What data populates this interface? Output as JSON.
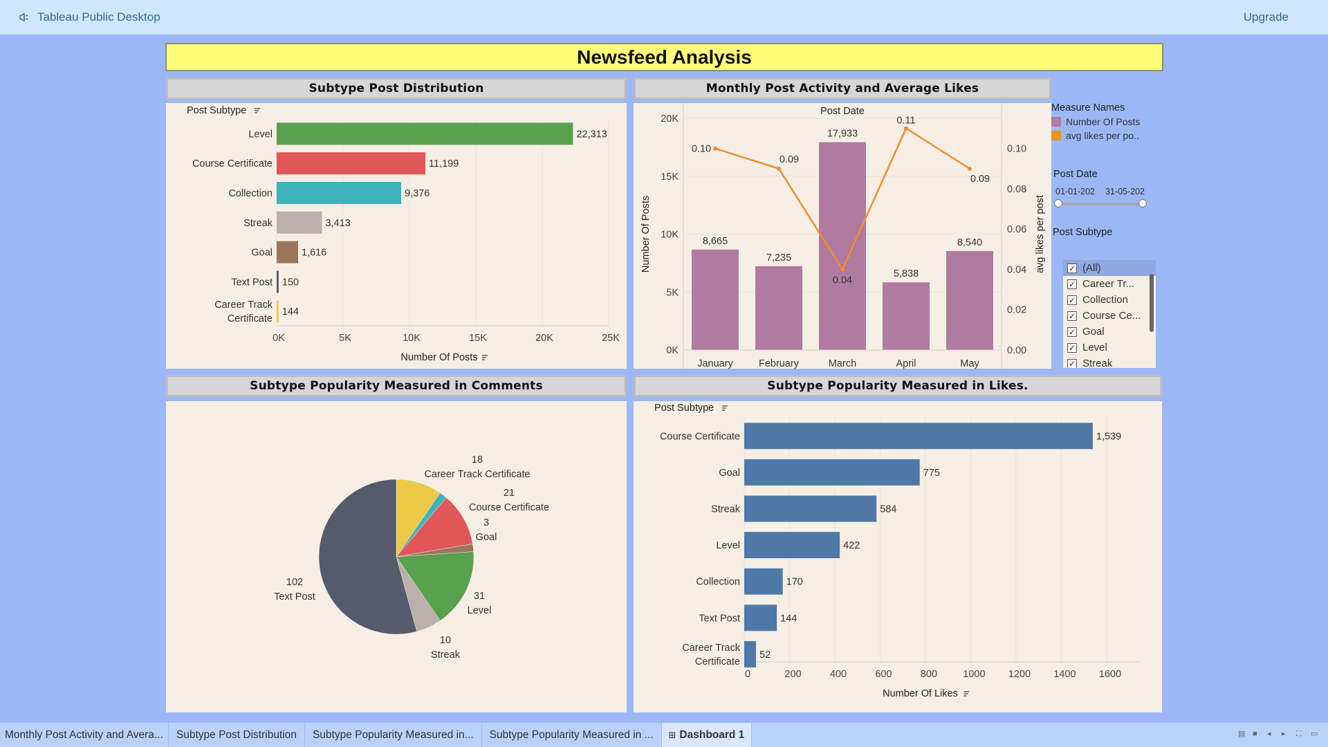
{
  "app": {
    "title": "Tableau Public Desktop",
    "upgrade_label": "Upgrade"
  },
  "dashboard": {
    "title": "Newsfeed Analysis"
  },
  "panels": {
    "subtype_distribution": {
      "title": "Subtype Post Distribution"
    },
    "monthly_activity": {
      "title": "Monthly Post Activity and Average Likes"
    },
    "comments_pie": {
      "title": "Subtype Popularity Measured in Comments"
    },
    "likes_bars": {
      "title": "Subtype Popularity Measured in Likes."
    }
  },
  "chart_data": [
    {
      "id": "subtype_distribution",
      "type": "bar",
      "orientation": "horizontal",
      "row_header": "Post Subtype",
      "xlabel": "Number Of Posts",
      "categories": [
        [
          "Level"
        ],
        [
          "Course Certificate"
        ],
        [
          "Collection"
        ],
        [
          "Streak"
        ],
        [
          "Goal"
        ],
        [
          "Text Post"
        ],
        [
          "Career Track",
          "Certificate"
        ]
      ],
      "values": [
        22313,
        11199,
        9376,
        3413,
        1616,
        150,
        144
      ],
      "value_labels": [
        "22,313",
        "11,199",
        "9,376",
        "3,413",
        "1,616",
        "150",
        "144"
      ],
      "colors": [
        "#59a14f",
        "#e15759",
        "#3fb3bb",
        "#bab0ac",
        "#9c755f",
        "#555b6a",
        "#edc948"
      ],
      "xlim": [
        0,
        25000
      ],
      "x_ticks": [
        0,
        5000,
        10000,
        15000,
        20000,
        25000
      ],
      "x_tick_labels": [
        "0K",
        "5K",
        "10K",
        "15K",
        "20K",
        "25K"
      ]
    },
    {
      "id": "monthly_activity",
      "type": "bar+line",
      "column_header": "Post Date",
      "categories": [
        "January",
        "February",
        "March",
        "April",
        "May"
      ],
      "series": [
        {
          "name": "Number Of Posts",
          "type": "bar",
          "axis": "left",
          "values": [
            8665,
            7235,
            17933,
            5838,
            8540
          ],
          "labels": [
            "8,665",
            "7,235",
            "17,933",
            "5,838",
            "8,540"
          ],
          "color": "#b07aa1"
        },
        {
          "name": "avg likes per po..",
          "type": "line",
          "axis": "right",
          "values": [
            0.1,
            0.09,
            0.04,
            0.11,
            0.09
          ],
          "labels": [
            "0.10",
            "0.09",
            "0.04",
            "0.11",
            "0.09"
          ],
          "color": "#f28e2b"
        }
      ],
      "ylabel": "Number Of Posts",
      "ylim": [
        0,
        20000
      ],
      "y_ticks": [
        0,
        5000,
        10000,
        15000,
        20000
      ],
      "y_tick_labels": [
        "0K",
        "5K",
        "10K",
        "15K",
        "20K"
      ],
      "y2label": "avg likes per post",
      "y2lim": [
        0,
        0.115
      ],
      "y2_ticks": [
        0.0,
        0.02,
        0.04,
        0.06,
        0.08,
        0.1
      ],
      "y2_tick_labels": [
        "0.00",
        "0.02",
        "0.04",
        "0.06",
        "0.08",
        "0.10"
      ]
    },
    {
      "id": "comments_pie",
      "type": "pie",
      "slices": [
        {
          "label": "Career Track Certificate",
          "value": 18,
          "color": "#edc948"
        },
        {
          "label": "Collection",
          "value": 3,
          "color": "#3fb3bb"
        },
        {
          "label": "Course Certificate",
          "value": 21,
          "color": "#e15759"
        },
        {
          "label": "Goal",
          "value": 3,
          "color": "#9c755f"
        },
        {
          "label": "Level",
          "value": 31,
          "color": "#59a14f"
        },
        {
          "label": "Streak",
          "value": 10,
          "color": "#bab0ac"
        },
        {
          "label": "Text Post",
          "value": 102,
          "color": "#555b6a"
        }
      ],
      "labels": [
        {
          "value": "18",
          "name": "Career Track Certificate"
        },
        {
          "value": "21",
          "name": "Course Certificate"
        },
        {
          "value": "3",
          "name": "Goal"
        },
        {
          "value": "31",
          "name": "Level"
        },
        {
          "value": "10",
          "name": "Streak"
        },
        {
          "value": "102",
          "name": "Text Post"
        }
      ]
    },
    {
      "id": "likes_bars",
      "type": "bar",
      "orientation": "horizontal",
      "row_header": "Post Subtype",
      "xlabel": "Number Of Likes",
      "categories": [
        [
          "Course Certificate"
        ],
        [
          "Goal"
        ],
        [
          "Streak"
        ],
        [
          "Level"
        ],
        [
          "Collection"
        ],
        [
          "Text Post"
        ],
        [
          "Career Track",
          "Certificate"
        ]
      ],
      "values": [
        1539,
        775,
        584,
        422,
        170,
        144,
        52
      ],
      "value_labels": [
        "1,539",
        "775",
        "584",
        "422",
        "170",
        "144",
        "52"
      ],
      "color": "#4e79a7",
      "xlim": [
        0,
        1750
      ],
      "x_ticks": [
        0,
        200,
        400,
        600,
        800,
        1000,
        1200,
        1400,
        1600
      ],
      "x_tick_labels": [
        "0",
        "200",
        "400",
        "600",
        "800",
        "1000",
        "1200",
        "1400",
        "1600"
      ]
    }
  ],
  "sidebar": {
    "legend_title": "Measure Names",
    "legend_items": [
      {
        "label": "Number Of Posts",
        "color": "#b07aa1"
      },
      {
        "label": "avg likes per po..",
        "color": "#f28e2b"
      }
    ],
    "date_filter": {
      "title": "Post Date",
      "start": "01-01-202",
      "end": "31-05-202"
    },
    "subtype_filter": {
      "title": "Post Subtype",
      "items": [
        {
          "label": "(All)",
          "selected": true
        },
        {
          "label": "Career Tr..."
        },
        {
          "label": "Collection"
        },
        {
          "label": "Course Ce..."
        },
        {
          "label": "Goal"
        },
        {
          "label": "Level"
        },
        {
          "label": "Streak"
        }
      ]
    }
  },
  "tabs": [
    {
      "label": "Monthly Post Activity and Avera..."
    },
    {
      "label": "Subtype Post Distribution"
    },
    {
      "label": "Subtype Popularity Measured in..."
    },
    {
      "label": "Subtype Popularity Measured in ..."
    },
    {
      "label": "Dashboard 1",
      "active": true,
      "icon": "grid-icon"
    }
  ]
}
